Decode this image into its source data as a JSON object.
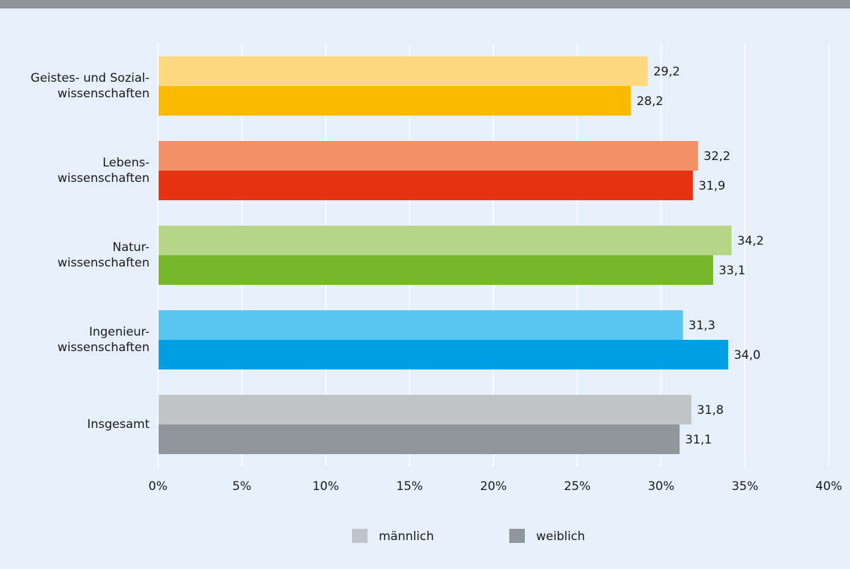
{
  "chart_data": {
    "type": "bar",
    "orientation": "horizontal",
    "categories": [
      "Geistes- und Sozial-\nwissenschaften",
      "Lebens-\nwissenschaften",
      "Natur-\nwissenschaften",
      "Ingenieur-\nwissenschaften",
      "Insgesamt"
    ],
    "series": [
      {
        "name": "männlich",
        "color": "#c0c4c6",
        "colors": [
          "#fed980",
          "#f39069",
          "#b6d687",
          "#5bc5f2",
          "#c0c4c6"
        ],
        "values": [
          29.2,
          32.2,
          34.2,
          31.3,
          31.8
        ],
        "value_labels": [
          "29,2",
          "32,2",
          "34,2",
          "31,3",
          "31,8"
        ]
      },
      {
        "name": "weiblich",
        "color": "#8f979b",
        "colors": [
          "#fbba00",
          "#e63312",
          "#77b72a",
          "#009fe3",
          "#8f979b"
        ],
        "values": [
          28.2,
          31.9,
          33.1,
          34.0,
          31.1
        ],
        "value_labels": [
          "28,2",
          "31,9",
          "33,1",
          "34,0",
          "31,1"
        ]
      }
    ],
    "xlim": [
      0,
      40
    ],
    "xticks": [
      {
        "value": 0,
        "label": "0%"
      },
      {
        "value": 5,
        "label": "5%"
      },
      {
        "value": 10,
        "label": "10%"
      },
      {
        "value": 15,
        "label": "15%"
      },
      {
        "value": 20,
        "label": "20%"
      },
      {
        "value": 25,
        "label": "25%"
      },
      {
        "value": 30,
        "label": "30%"
      },
      {
        "value": 35,
        "label": "35%"
      },
      {
        "value": 40,
        "label": "40%"
      }
    ],
    "grid": true
  }
}
